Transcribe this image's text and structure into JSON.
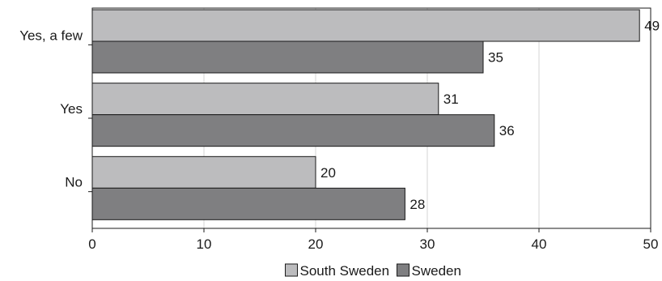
{
  "chart_data": {
    "type": "bar",
    "orientation": "horizontal",
    "categories": [
      "Yes, a few",
      "Yes",
      "No"
    ],
    "series": [
      {
        "name": "South Sweden",
        "values": [
          49,
          31,
          20
        ],
        "color": "#bcbcbe"
      },
      {
        "name": "Sweden",
        "values": [
          35,
          36,
          28
        ],
        "color": "#7f7f81"
      }
    ],
    "xlim": [
      0,
      50
    ],
    "xticks": [
      "0",
      "10",
      "20",
      "30",
      "40",
      "50"
    ],
    "grid": true,
    "legend": "bottom",
    "title": "",
    "xlabel": "",
    "ylabel": ""
  }
}
